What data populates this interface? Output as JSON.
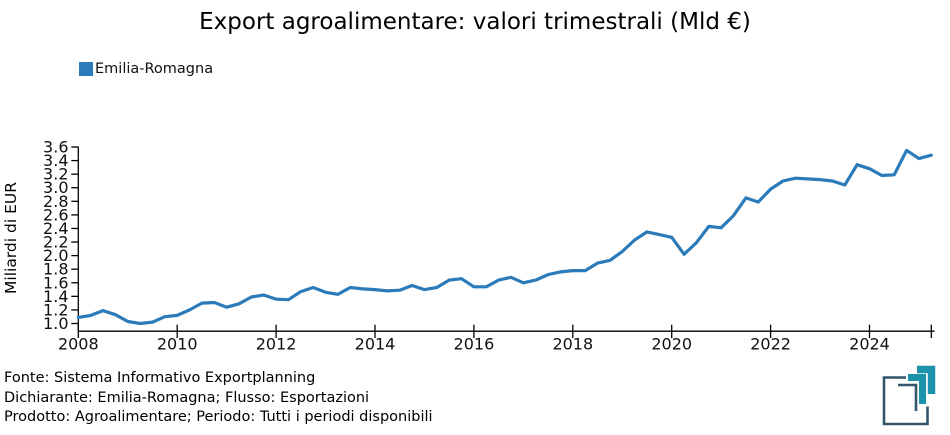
{
  "title": "Export agroalimentare: valori trimestrali (Mld €)",
  "legend": {
    "label": "Emilia-Romagna",
    "color": "#2b7bba"
  },
  "y_axis": {
    "title": "Miliardi di EUR"
  },
  "footer": {
    "line1": "Fonte: Sistema Informativo Exportplanning",
    "line2": "Dichiarante: Emilia-Romagna; Flusso: Esportazioni",
    "line3": "Prodotto: Agroalimentare; Periodo: Tutti i periodi disponibili"
  },
  "logo": {
    "name": "exportplanning-logo",
    "dark_color": "#33566b",
    "teal_color": "#1b93ab"
  },
  "chart_data": {
    "type": "line",
    "title": "Export agroalimentare: valori trimestrali (Mld €)",
    "ylabel": "Miliardi di EUR",
    "ylim": [
      1.0,
      3.6
    ],
    "grid": false,
    "legend_position": "top-left",
    "frequency": "quarterly",
    "x_start": {
      "year": 2008,
      "quarter": 1
    },
    "x_end": {
      "year": 2025,
      "quarter": 2
    },
    "x_tick_labels": [
      "2008",
      "2010",
      "2012",
      "2014",
      "2016",
      "2018",
      "2020",
      "2022",
      "2024"
    ],
    "y_tick_labels": [
      "3.6",
      "3.4",
      "3.2",
      "3.0",
      "2.8",
      "2.6",
      "2.4",
      "2.2",
      "2.0",
      "1.8",
      "1.6",
      "1.4",
      "1.2",
      "1.0"
    ],
    "series": [
      {
        "name": "Emilia-Romagna",
        "color": "#2b7bba",
        "unit": "Mld EUR",
        "values": [
          1.09,
          1.12,
          1.19,
          1.13,
          1.03,
          1.0,
          1.02,
          1.1,
          1.12,
          1.2,
          1.3,
          1.31,
          1.24,
          1.29,
          1.39,
          1.42,
          1.36,
          1.35,
          1.47,
          1.53,
          1.46,
          1.43,
          1.53,
          1.51,
          1.5,
          1.48,
          1.49,
          1.56,
          1.5,
          1.53,
          1.64,
          1.66,
          1.54,
          1.54,
          1.64,
          1.68,
          1.6,
          1.64,
          1.72,
          1.76,
          1.78,
          1.78,
          1.89,
          1.93,
          2.06,
          2.23,
          2.35,
          2.31,
          2.27,
          2.02,
          2.19,
          2.43,
          2.41,
          2.59,
          2.85,
          2.79,
          2.98,
          3.1,
          3.14,
          3.13,
          3.12,
          3.1,
          3.04,
          3.34,
          3.28,
          3.18,
          3.19,
          3.55,
          3.43,
          3.48
        ]
      }
    ]
  }
}
